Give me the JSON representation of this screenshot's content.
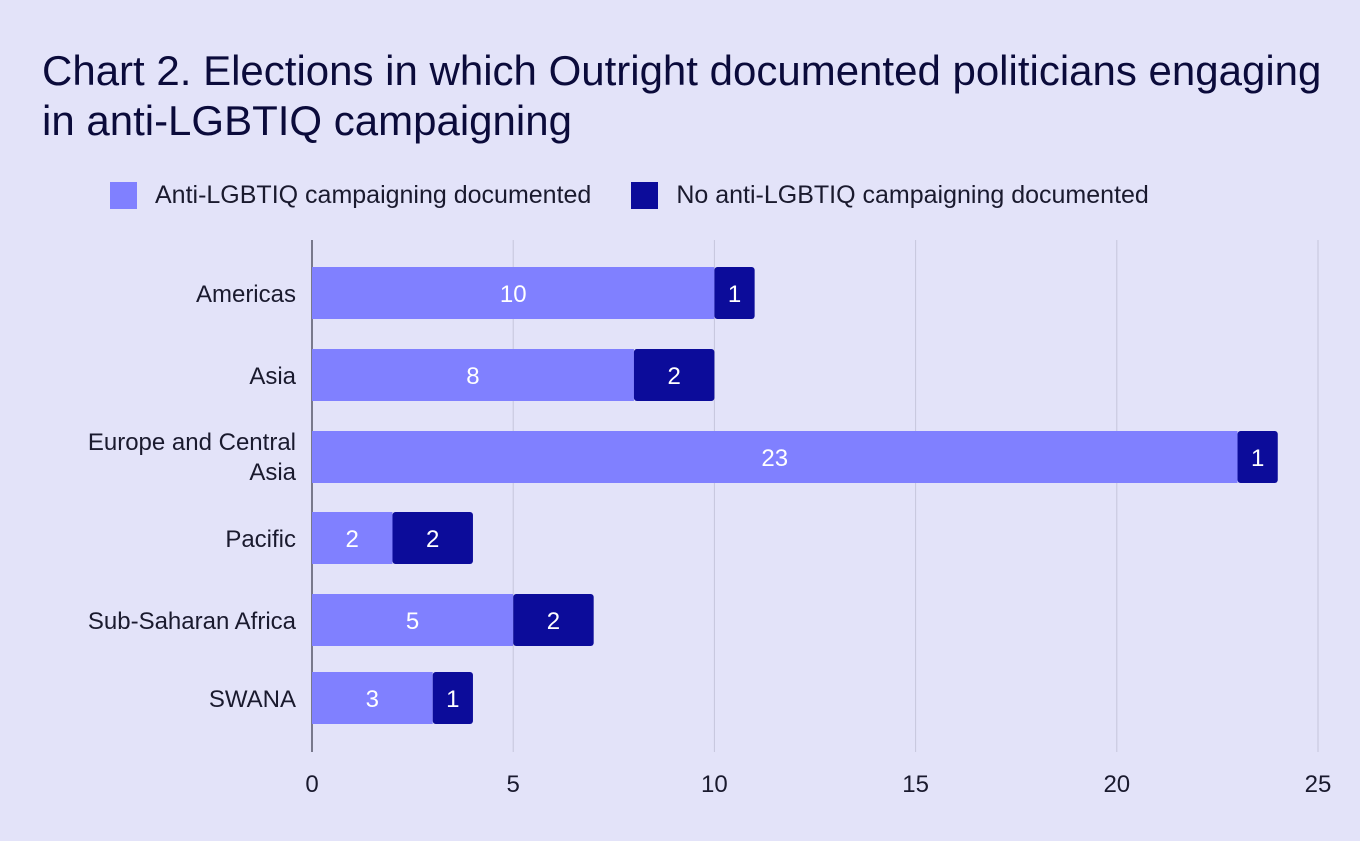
{
  "chart_data": {
    "type": "bar",
    "orientation": "horizontal",
    "stacked": true,
    "title": "Chart 2. Elections in which Outright documented politicians engaging in anti-LGBTIQ campaigning",
    "categories": [
      "Americas",
      "Asia",
      "Europe and Central Asia",
      "Pacific",
      "Sub-Saharan Africa",
      "SWANA"
    ],
    "series": [
      {
        "name": "Anti-LGBTIQ campaigning documented",
        "color": "#8080ff",
        "label_color": "#e8e8ff",
        "values": [
          10,
          8,
          23,
          2,
          5,
          3
        ]
      },
      {
        "name": "No anti-LGBTIQ campaigning documented",
        "color": "#0c0c9a",
        "label_color": "#ffffff",
        "values": [
          1,
          2,
          1,
          2,
          2,
          1
        ]
      }
    ],
    "xlim": [
      0,
      25
    ],
    "xticks": [
      "0",
      "5",
      "10",
      "15",
      "20",
      "25"
    ],
    "grid": true,
    "legend": "top"
  }
}
